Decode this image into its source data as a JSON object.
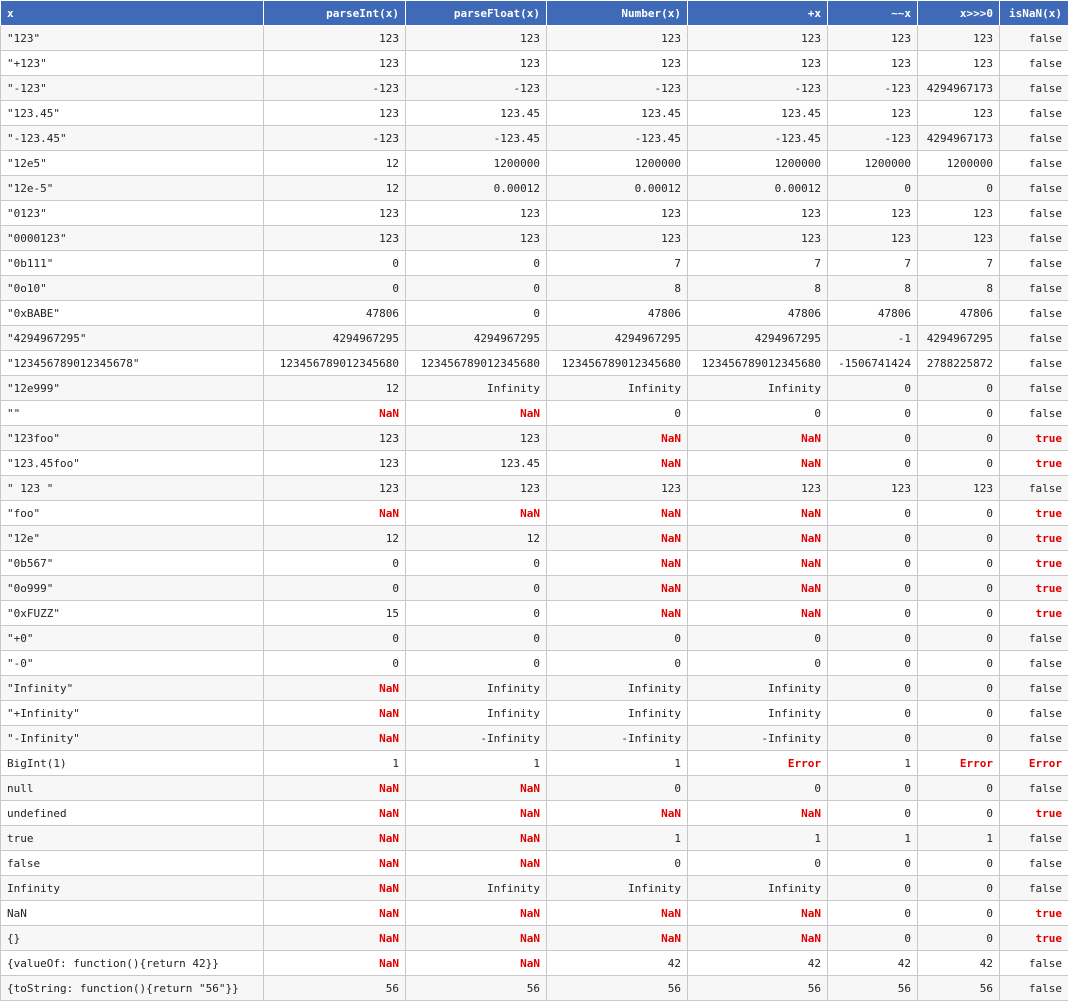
{
  "columns": [
    "x",
    "parseInt(x)",
    "parseFloat(x)",
    "Number(x)",
    "+x",
    "~~x",
    "x>>>0",
    "isNaN(x)"
  ],
  "highlight_color": "#e00000",
  "header_color": "#3f6ab8",
  "rows": [
    [
      "\"123\"",
      "123",
      "123",
      "123",
      "123",
      "123",
      "123",
      "false"
    ],
    [
      "\"+123\"",
      "123",
      "123",
      "123",
      "123",
      "123",
      "123",
      "false"
    ],
    [
      "\"-123\"",
      "-123",
      "-123",
      "-123",
      "-123",
      "-123",
      "4294967173",
      "false"
    ],
    [
      "\"123.45\"",
      "123",
      "123.45",
      "123.45",
      "123.45",
      "123",
      "123",
      "false"
    ],
    [
      "\"-123.45\"",
      "-123",
      "-123.45",
      "-123.45",
      "-123.45",
      "-123",
      "4294967173",
      "false"
    ],
    [
      "\"12e5\"",
      "12",
      "1200000",
      "1200000",
      "1200000",
      "1200000",
      "1200000",
      "false"
    ],
    [
      "\"12e-5\"",
      "12",
      "0.00012",
      "0.00012",
      "0.00012",
      "0",
      "0",
      "false"
    ],
    [
      "\"0123\"",
      "123",
      "123",
      "123",
      "123",
      "123",
      "123",
      "false"
    ],
    [
      "\"0000123\"",
      "123",
      "123",
      "123",
      "123",
      "123",
      "123",
      "false"
    ],
    [
      "\"0b111\"",
      "0",
      "0",
      "7",
      "7",
      "7",
      "7",
      "false"
    ],
    [
      "\"0o10\"",
      "0",
      "0",
      "8",
      "8",
      "8",
      "8",
      "false"
    ],
    [
      "\"0xBABE\"",
      "47806",
      "0",
      "47806",
      "47806",
      "47806",
      "47806",
      "false"
    ],
    [
      "\"4294967295\"",
      "4294967295",
      "4294967295",
      "4294967295",
      "4294967295",
      "-1",
      "4294967295",
      "false"
    ],
    [
      "\"123456789012345678\"",
      "123456789012345680",
      "123456789012345680",
      "123456789012345680",
      "123456789012345680",
      "-1506741424",
      "2788225872",
      "false"
    ],
    [
      "\"12e999\"",
      "12",
      "Infinity",
      "Infinity",
      "Infinity",
      "0",
      "0",
      "false"
    ],
    [
      "\"\"",
      "NaN",
      "NaN",
      "0",
      "0",
      "0",
      "0",
      "false"
    ],
    [
      "\"123foo\"",
      "123",
      "123",
      "NaN",
      "NaN",
      "0",
      "0",
      "true"
    ],
    [
      "\"123.45foo\"",
      "123",
      "123.45",
      "NaN",
      "NaN",
      "0",
      "0",
      "true"
    ],
    [
      "\" 123 \"",
      "123",
      "123",
      "123",
      "123",
      "123",
      "123",
      "false"
    ],
    [
      "\"foo\"",
      "NaN",
      "NaN",
      "NaN",
      "NaN",
      "0",
      "0",
      "true"
    ],
    [
      "\"12e\"",
      "12",
      "12",
      "NaN",
      "NaN",
      "0",
      "0",
      "true"
    ],
    [
      "\"0b567\"",
      "0",
      "0",
      "NaN",
      "NaN",
      "0",
      "0",
      "true"
    ],
    [
      "\"0o999\"",
      "0",
      "0",
      "NaN",
      "NaN",
      "0",
      "0",
      "true"
    ],
    [
      "\"0xFUZZ\"",
      "15",
      "0",
      "NaN",
      "NaN",
      "0",
      "0",
      "true"
    ],
    [
      "\"+0\"",
      "0",
      "0",
      "0",
      "0",
      "0",
      "0",
      "false"
    ],
    [
      "\"-0\"",
      "0",
      "0",
      "0",
      "0",
      "0",
      "0",
      "false"
    ],
    [
      "\"Infinity\"",
      "NaN",
      "Infinity",
      "Infinity",
      "Infinity",
      "0",
      "0",
      "false"
    ],
    [
      "\"+Infinity\"",
      "NaN",
      "Infinity",
      "Infinity",
      "Infinity",
      "0",
      "0",
      "false"
    ],
    [
      "\"-Infinity\"",
      "NaN",
      "-Infinity",
      "-Infinity",
      "-Infinity",
      "0",
      "0",
      "false"
    ],
    [
      "BigInt(1)",
      "1",
      "1",
      "1",
      "Error",
      "1",
      "Error",
      "Error"
    ],
    [
      "null",
      "NaN",
      "NaN",
      "0",
      "0",
      "0",
      "0",
      "false"
    ],
    [
      "undefined",
      "NaN",
      "NaN",
      "NaN",
      "NaN",
      "0",
      "0",
      "true"
    ],
    [
      "true",
      "NaN",
      "NaN",
      "1",
      "1",
      "1",
      "1",
      "false"
    ],
    [
      "false",
      "NaN",
      "NaN",
      "0",
      "0",
      "0",
      "0",
      "false"
    ],
    [
      "Infinity",
      "NaN",
      "Infinity",
      "Infinity",
      "Infinity",
      "0",
      "0",
      "false"
    ],
    [
      "NaN",
      "NaN",
      "NaN",
      "NaN",
      "NaN",
      "0",
      "0",
      "true"
    ],
    [
      "{}",
      "NaN",
      "NaN",
      "NaN",
      "NaN",
      "0",
      "0",
      "true"
    ],
    [
      "{valueOf: function(){return 42}}",
      "NaN",
      "NaN",
      "42",
      "42",
      "42",
      "42",
      "false"
    ],
    [
      "{toString: function(){return \"56\"}}",
      "56",
      "56",
      "56",
      "56",
      "56",
      "56",
      "false"
    ]
  ]
}
